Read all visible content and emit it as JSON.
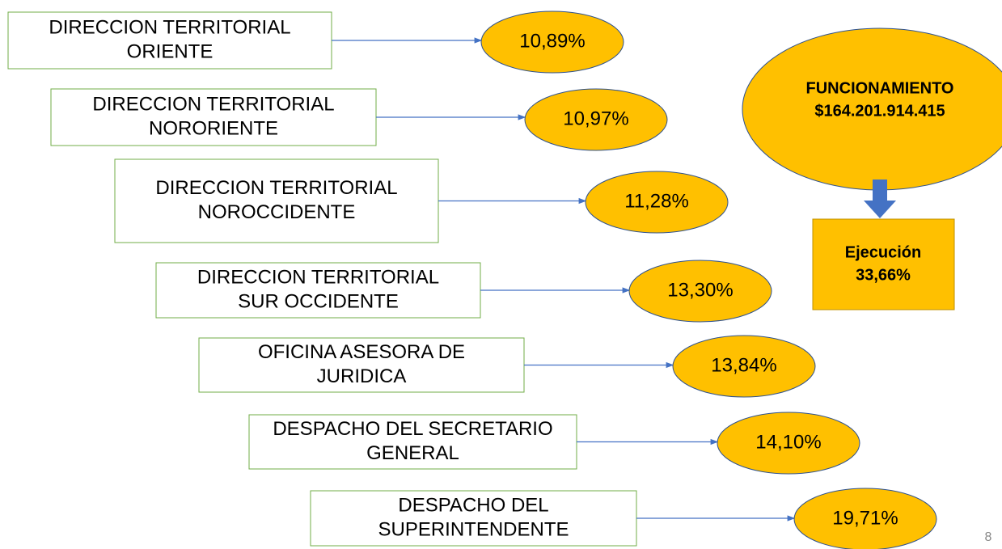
{
  "items": [
    {
      "label": [
        "DIRECCION TERRITORIAL",
        "ORIENTE"
      ],
      "value": "10,89%"
    },
    {
      "label": [
        "DIRECCION TERRITORIAL",
        "NORORIENTE"
      ],
      "value": "10,97%"
    },
    {
      "label": [
        "DIRECCION TERRITORIAL",
        "NOROCCIDENTE"
      ],
      "value": "11,28%"
    },
    {
      "label": [
        "DIRECCION TERRITORIAL",
        "SUR OCCIDENTE"
      ],
      "value": "13,30%"
    },
    {
      "label": [
        "OFICINA ASESORA DE",
        "JURIDICA"
      ],
      "value": "13,84%"
    },
    {
      "label": [
        "DESPACHO DEL SECRETARIO",
        "GENERAL"
      ],
      "value": "14,10%"
    },
    {
      "label": [
        "DESPACHO DEL",
        "SUPERINTENDENTE"
      ],
      "value": "19,71%"
    }
  ],
  "summary": {
    "title": "FUNCIONAMIENTO",
    "amount": "$164.201.914.415",
    "execution_label": "Ejecución",
    "execution_value": "33,66%"
  },
  "page_number": "8"
}
